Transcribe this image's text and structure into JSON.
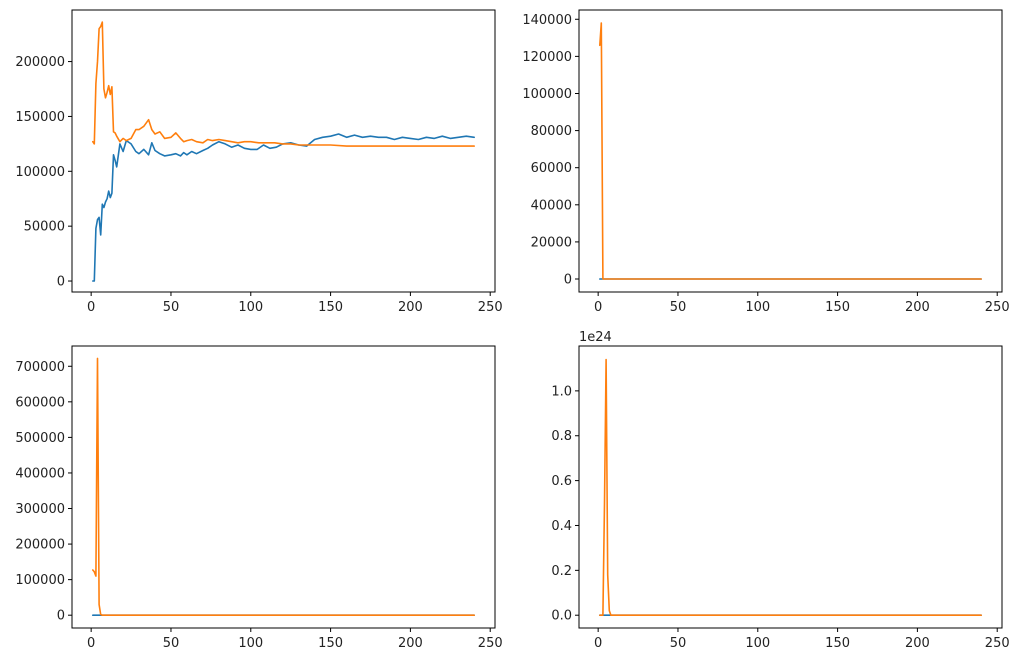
{
  "colors": {
    "series_a": "#1f77b4",
    "series_b": "#ff7f0e"
  },
  "chart_data": [
    {
      "type": "line",
      "title": "",
      "xlabel": "",
      "ylabel": "",
      "xlim": [
        -12,
        253
      ],
      "ylim": [
        -10000,
        247000
      ],
      "xticks": [
        0,
        50,
        100,
        150,
        200,
        250
      ],
      "yticks": [
        0,
        50000,
        100000,
        150000,
        200000
      ],
      "ytick_labels": [
        "0",
        "50000",
        "100000",
        "150000",
        "200000"
      ],
      "offset_label": "",
      "grid": false,
      "legend": "none",
      "series": [
        {
          "color": "#1f77b4",
          "x": [
            1,
            2,
            3,
            4,
            5,
            6,
            7,
            8,
            9,
            10,
            11,
            12,
            13,
            14,
            15,
            16,
            18,
            20,
            22,
            25,
            28,
            30,
            33,
            36,
            38,
            40,
            43,
            46,
            50,
            53,
            56,
            58,
            60,
            63,
            66,
            70,
            73,
            76,
            80,
            84,
            88,
            92,
            96,
            100,
            104,
            108,
            112,
            116,
            120,
            125,
            130,
            135,
            140,
            145,
            150,
            155,
            160,
            165,
            170,
            175,
            180,
            185,
            190,
            195,
            200,
            205,
            210,
            215,
            220,
            225,
            230,
            235,
            240
          ],
          "y": [
            0,
            0,
            48000,
            56000,
            58000,
            42000,
            70000,
            67000,
            72000,
            75000,
            82000,
            76000,
            80000,
            115000,
            110000,
            104000,
            125000,
            118000,
            128000,
            125000,
            118000,
            116000,
            120000,
            115000,
            126000,
            119000,
            116000,
            114000,
            115000,
            116000,
            114000,
            117000,
            115000,
            118000,
            116000,
            119000,
            121000,
            124000,
            127000,
            125000,
            122000,
            124000,
            121000,
            120000,
            120000,
            124000,
            121000,
            122000,
            125000,
            126000,
            124000,
            123000,
            129000,
            131000,
            132000,
            134000,
            131000,
            133000,
            131000,
            132000,
            131000,
            131000,
            129000,
            131000,
            130000,
            129000,
            131000,
            130000,
            132000,
            130000,
            131000,
            132000,
            131000
          ]
        },
        {
          "color": "#ff7f0e",
          "x": [
            1,
            2,
            3,
            4,
            5,
            6,
            7,
            8,
            9,
            10,
            11,
            12,
            13,
            14,
            15,
            16,
            18,
            20,
            22,
            25,
            28,
            30,
            33,
            36,
            38,
            40,
            43,
            46,
            50,
            53,
            56,
            58,
            60,
            63,
            66,
            70,
            73,
            76,
            80,
            84,
            88,
            92,
            96,
            100,
            105,
            110,
            115,
            120,
            125,
            130,
            135,
            140,
            150,
            160,
            170,
            180,
            190,
            200,
            210,
            220,
            230,
            240
          ],
          "y": [
            127000,
            125000,
            180000,
            200000,
            230000,
            232000,
            236000,
            175000,
            167000,
            172000,
            178000,
            170000,
            177000,
            136000,
            135000,
            132000,
            127000,
            130000,
            128000,
            130000,
            138000,
            138000,
            141000,
            147000,
            138000,
            134000,
            136000,
            130000,
            131000,
            135000,
            130000,
            127000,
            128000,
            129000,
            127000,
            126000,
            129000,
            128000,
            129000,
            128000,
            127000,
            126000,
            127000,
            127000,
            126000,
            126000,
            126000,
            125000,
            125000,
            124000,
            124000,
            124000,
            124000,
            123000,
            123000,
            123000,
            123000,
            123000,
            123000,
            123000,
            123000,
            123000
          ]
        }
      ]
    },
    {
      "type": "line",
      "title": "",
      "xlabel": "",
      "ylabel": "",
      "xlim": [
        -12,
        253
      ],
      "ylim": [
        -7000,
        145000
      ],
      "xticks": [
        0,
        50,
        100,
        150,
        200,
        250
      ],
      "yticks": [
        0,
        20000,
        40000,
        60000,
        80000,
        100000,
        120000,
        140000
      ],
      "ytick_labels": [
        "0",
        "20000",
        "40000",
        "60000",
        "80000",
        "100000",
        "120000",
        "140000"
      ],
      "offset_label": "",
      "grid": false,
      "legend": "none",
      "series": [
        {
          "color": "#1f77b4",
          "x": [
            1,
            2,
            3,
            240
          ],
          "y": [
            0,
            0,
            0,
            0
          ]
        },
        {
          "color": "#ff7f0e",
          "x": [
            1,
            2,
            3,
            4,
            240
          ],
          "y": [
            126000,
            138000,
            0,
            0,
            0
          ]
        }
      ]
    },
    {
      "type": "line",
      "title": "",
      "xlabel": "",
      "ylabel": "",
      "xlim": [
        -12,
        253
      ],
      "ylim": [
        -36000,
        757000
      ],
      "xticks": [
        0,
        50,
        100,
        150,
        200,
        250
      ],
      "yticks": [
        0,
        100000,
        200000,
        300000,
        400000,
        500000,
        600000,
        700000
      ],
      "ytick_labels": [
        "0",
        "100000",
        "200000",
        "300000",
        "400000",
        "500000",
        "600000",
        "700000"
      ],
      "offset_label": "",
      "grid": false,
      "legend": "none",
      "series": [
        {
          "color": "#1f77b4",
          "x": [
            1,
            2,
            3,
            240
          ],
          "y": [
            0,
            0,
            0,
            0
          ]
        },
        {
          "color": "#ff7f0e",
          "x": [
            1,
            2,
            3,
            4,
            5,
            6,
            7,
            240
          ],
          "y": [
            127000,
            122000,
            110000,
            722000,
            30000,
            2000,
            0,
            0
          ]
        }
      ]
    },
    {
      "type": "line",
      "title": "",
      "xlabel": "",
      "ylabel": "",
      "xlim": [
        -12,
        253
      ],
      "ylim": [
        -0.057,
        1.2
      ],
      "xticks": [
        0,
        50,
        100,
        150,
        200,
        250
      ],
      "yticks": [
        0.0,
        0.2,
        0.4,
        0.6,
        0.8,
        1.0
      ],
      "ytick_labels": [
        "0.0",
        "0.2",
        "0.4",
        "0.6",
        "0.8",
        "1.0"
      ],
      "offset_label": "1e24",
      "grid": false,
      "legend": "none",
      "series": [
        {
          "color": "#1f77b4",
          "x": [
            1,
            2,
            3,
            240
          ],
          "y": [
            0,
            0,
            0,
            0
          ]
        },
        {
          "color": "#ff7f0e",
          "x": [
            1,
            2,
            3,
            4,
            5,
            6,
            7,
            8,
            240
          ],
          "y": [
            0,
            0,
            0,
            0.5,
            1.14,
            0.18,
            0.02,
            0,
            0
          ]
        }
      ]
    }
  ]
}
